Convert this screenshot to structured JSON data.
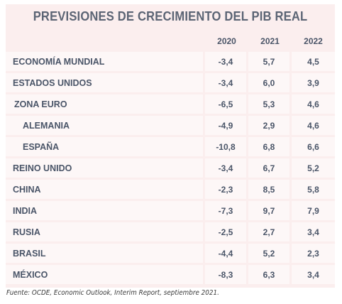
{
  "chart_data": {
    "type": "table",
    "title": "PREVISIONES DE CRECIMIENTO DEL PIB REAL",
    "columns": [
      "2020",
      "2021",
      "2022"
    ],
    "rows": [
      {
        "label": "ECONOMÍA MUNDIAL",
        "level": 0,
        "values": [
          "-3,4",
          "5,7",
          "4,5"
        ]
      },
      {
        "label": "ESTADOS UNIDOS",
        "level": 0,
        "values": [
          "-3,4",
          "6,0",
          "3,9"
        ]
      },
      {
        "label": "ZONA EURO",
        "level": 1,
        "values": [
          "-6,5",
          "5,3",
          "4,6"
        ]
      },
      {
        "label": "ALEMANIA",
        "level": 2,
        "values": [
          "-4,9",
          "2,9",
          "4,6"
        ]
      },
      {
        "label": "ESPAÑA",
        "level": 2,
        "values": [
          "-10,8",
          "6,8",
          "6,6"
        ]
      },
      {
        "label": "REINO UNIDO",
        "level": 0,
        "values": [
          "-3,4",
          "6,7",
          "5,2"
        ]
      },
      {
        "label": "CHINA",
        "level": 0,
        "values": [
          "-2,3",
          "8,5",
          "5,8"
        ]
      },
      {
        "label": "INDIA",
        "level": 0,
        "values": [
          "-7,3",
          "9,7",
          "7,9"
        ]
      },
      {
        "label": "RUSIA",
        "level": 0,
        "values": [
          "-2,5",
          "2,7",
          "3,4"
        ]
      },
      {
        "label": "BRASIL",
        "level": 0,
        "values": [
          "-4,4",
          "5,2",
          "2,3"
        ]
      },
      {
        "label": "MÉXICO",
        "level": 0,
        "values": [
          "-8,3",
          "6,3",
          "3,4"
        ]
      }
    ],
    "source": "Fuente: OCDE, Economic Outlook, Interim Report, septiembre 2021."
  },
  "colors": {
    "panel": "#fbeeee",
    "row": "#fdf7f7",
    "text": "#4a5568"
  }
}
